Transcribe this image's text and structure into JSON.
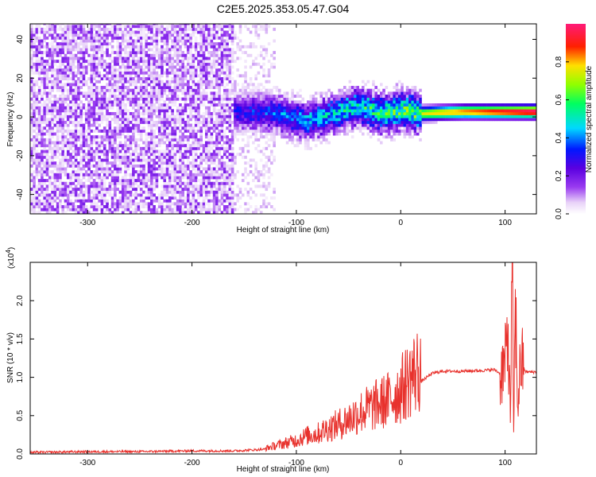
{
  "title": "C2E5.2025.353.05.47.G04",
  "chart_data": [
    {
      "type": "heatmap",
      "xlabel": "Height of straight line (km)",
      "ylabel": "Frequency (Hz)",
      "xlim": [
        -355,
        130
      ],
      "ylim": [
        -50,
        48
      ],
      "xticks": [
        -300,
        -200,
        -100,
        0,
        100
      ],
      "yticks": [
        -40,
        -20,
        0,
        20,
        40
      ],
      "colorbar": {
        "label": "Normalized spectral amplitude",
        "range": [
          0.0,
          1.0
        ],
        "ticks": [
          0.0,
          0.2,
          0.4,
          0.6,
          0.8
        ],
        "colormap": "rainbow (white-purple-blue-cyan-green-yellow-red-magenta)"
      },
      "regions": [
        {
          "x_range": [
            -355,
            -160
          ],
          "description": "broadband noise, amplitude ~0.05-0.15 across all frequencies"
        },
        {
          "x_range": [
            -160,
            -120
          ],
          "description": "sparse noise, amplitude ~0.02-0.08"
        },
        {
          "x_range": [
            -160,
            130
          ],
          "description": "narrow band near 0 Hz, amplitude rising from ~0.3 to ~1.0"
        }
      ],
      "band_center_hz": [
        {
          "x": -155,
          "y": 2
        },
        {
          "x": -120,
          "y": 1
        },
        {
          "x": -90,
          "y": -3
        },
        {
          "x": -60,
          "y": 2
        },
        {
          "x": -40,
          "y": 5
        },
        {
          "x": -20,
          "y": 1
        },
        {
          "x": 0,
          "y": 3
        },
        {
          "x": 20,
          "y": 1
        },
        {
          "x": 60,
          "y": 2
        },
        {
          "x": 130,
          "y": 2
        }
      ]
    },
    {
      "type": "line",
      "xlabel": "Height of straight line (km)",
      "ylabel": "SNR (10 * v/v)",
      "y_multiplier": "(x10",
      "y_multiplier_exp": "4",
      "y_multiplier_close": ")",
      "xlim": [
        -355,
        130
      ],
      "ylim": [
        0,
        2.5
      ],
      "xticks": [
        -300,
        -200,
        -100,
        0,
        100
      ],
      "yticks": [
        0.0,
        0.5,
        1.0,
        1.5,
        2.0
      ],
      "ytick_labels": [
        "0.0",
        "0.5",
        "1.0",
        "1.5",
        "2.0"
      ],
      "color": "#e8322d",
      "series": [
        {
          "x": [
            -355,
            -300,
            -250,
            -200,
            -160,
            -130,
            -110,
            -100,
            -90,
            -80,
            -70,
            -60,
            -50,
            -40,
            -30,
            -20,
            -10,
            0,
            10,
            20,
            30,
            40,
            60,
            80,
            90,
            95,
            100,
            103,
            105,
            107,
            108,
            110,
            112,
            115,
            120,
            130
          ],
          "y": [
            0.02,
            0.03,
            0.03,
            0.04,
            0.04,
            0.06,
            0.12,
            0.15,
            0.2,
            0.22,
            0.28,
            0.32,
            0.38,
            0.45,
            0.5,
            0.55,
            0.6,
            0.7,
            0.85,
            0.95,
            1.05,
            1.08,
            1.08,
            1.09,
            1.1,
            1.05,
            1.15,
            1.6,
            0.5,
            2.5,
            0.2,
            1.9,
            0.6,
            1.2,
            1.07,
            1.07
          ]
        }
      ]
    }
  ]
}
